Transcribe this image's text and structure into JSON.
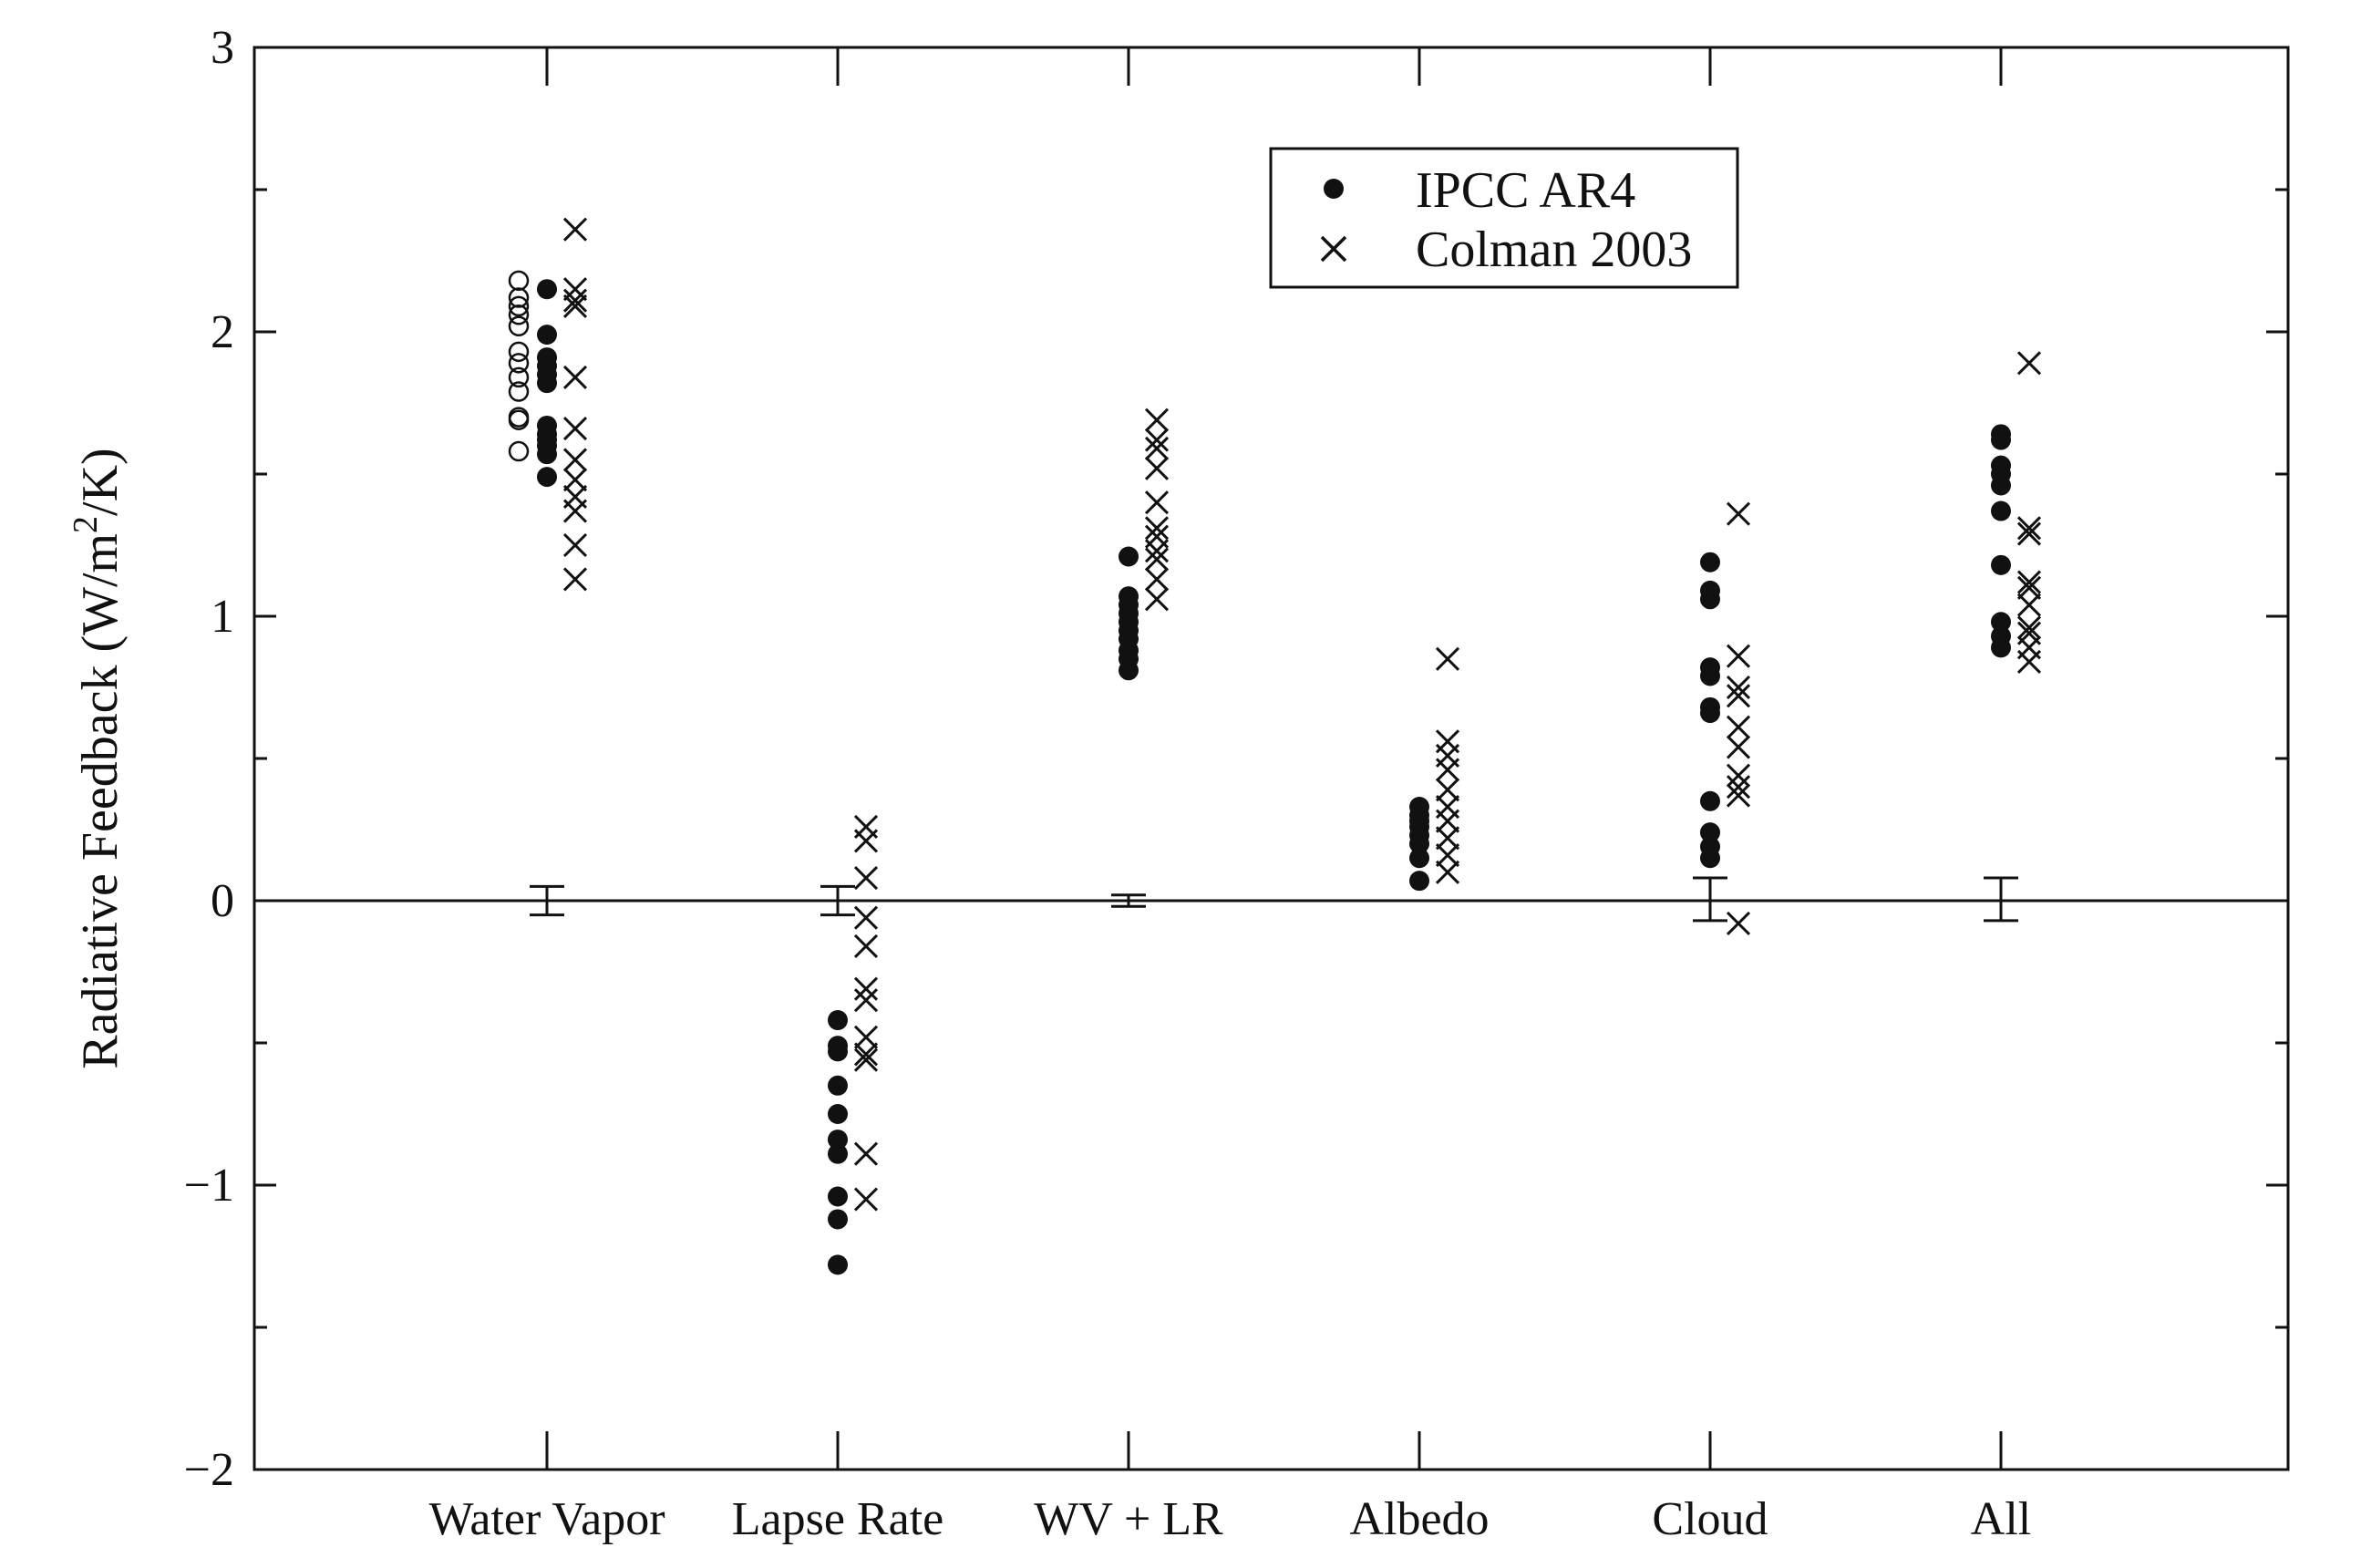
{
  "chart_data": {
    "type": "scatter",
    "title": "",
    "xlabel": "",
    "ylabel": "Radiative Feedback (W/m",
    "ylabel_sup": "2",
    "ylabel_tail": "/K)",
    "ylim": [
      -2,
      3
    ],
    "yticks": [
      -2,
      -1,
      0,
      1,
      2,
      3
    ],
    "ytick_labels": [
      "−2",
      "−1",
      "0",
      "1",
      "2",
      "3"
    ],
    "categories": [
      "Water Vapor",
      "Lapse Rate",
      "WV + LR",
      "Albedo",
      "Cloud",
      "All"
    ],
    "grid": false,
    "zero_line": true,
    "legend": {
      "placement": "top-center",
      "entries": [
        {
          "label": "IPCC AR4",
          "marker": "filled-circle"
        },
        {
          "label": "Colman 2003",
          "marker": "x"
        }
      ]
    },
    "series": [
      {
        "name": "IPCC AR4",
        "marker": "filled-circle",
        "values": [
          [
            1.49,
            1.57,
            1.6,
            1.62,
            1.64,
            1.67,
            1.82,
            1.85,
            1.88,
            1.91,
            1.99,
            2.15
          ],
          [
            -1.28,
            -1.12,
            -1.04,
            -0.89,
            -0.84,
            -0.75,
            -0.65,
            -0.53,
            -0.51,
            -0.42
          ],
          [
            0.81,
            0.85,
            0.88,
            0.92,
            0.95,
            0.98,
            1.01,
            1.04,
            1.07,
            1.21
          ],
          [
            0.07,
            0.15,
            0.2,
            0.23,
            0.26,
            0.28,
            0.3,
            0.33
          ],
          [
            0.15,
            0.19,
            0.24,
            0.35,
            0.66,
            0.68,
            0.79,
            0.82,
            1.06,
            1.09,
            1.19
          ],
          [
            0.89,
            0.93,
            0.98,
            1.18,
            1.37,
            1.46,
            1.5,
            1.53,
            1.62,
            1.64
          ]
        ]
      },
      {
        "name": "",
        "marker": "open-circle",
        "values": [
          [
            1.58,
            1.69,
            1.7,
            1.79,
            1.84,
            1.89,
            1.93,
            2.02,
            2.06,
            2.09,
            2.12,
            2.18
          ],
          [],
          [],
          [],
          [],
          []
        ]
      },
      {
        "name": "Colman 2003",
        "marker": "x",
        "values": [
          [
            1.13,
            1.25,
            1.37,
            1.42,
            1.48,
            1.55,
            1.66,
            1.84,
            2.09,
            2.11,
            2.15,
            2.36
          ],
          [
            -1.05,
            -0.89,
            -0.56,
            -0.54,
            -0.48,
            -0.35,
            -0.31,
            -0.16,
            -0.06,
            0.08,
            0.21,
            0.26
          ],
          [
            1.06,
            1.13,
            1.2,
            1.23,
            1.28,
            1.31,
            1.4,
            1.52,
            1.59,
            1.62,
            1.69
          ],
          [
            0.1,
            0.16,
            0.22,
            0.28,
            0.33,
            0.39,
            0.46,
            0.51,
            0.56,
            0.85
          ],
          [
            -0.08,
            0.37,
            0.4,
            0.44,
            0.54,
            0.61,
            0.72,
            0.75,
            0.86,
            1.36
          ],
          [
            0.84,
            0.89,
            0.94,
            0.96,
            1.04,
            1.1,
            1.12,
            1.29,
            1.31,
            1.89
          ]
        ]
      }
    ],
    "error_bars": [
      {
        "category": "Water Vapor",
        "low": -0.05,
        "high": 0.05
      },
      {
        "category": "Lapse Rate",
        "low": -0.05,
        "high": 0.05
      },
      {
        "category": "WV + LR",
        "low": -0.02,
        "high": 0.02
      },
      {
        "category": "Cloud",
        "low": -0.07,
        "high": 0.08
      },
      {
        "category": "All",
        "low": -0.07,
        "high": 0.08
      }
    ]
  }
}
